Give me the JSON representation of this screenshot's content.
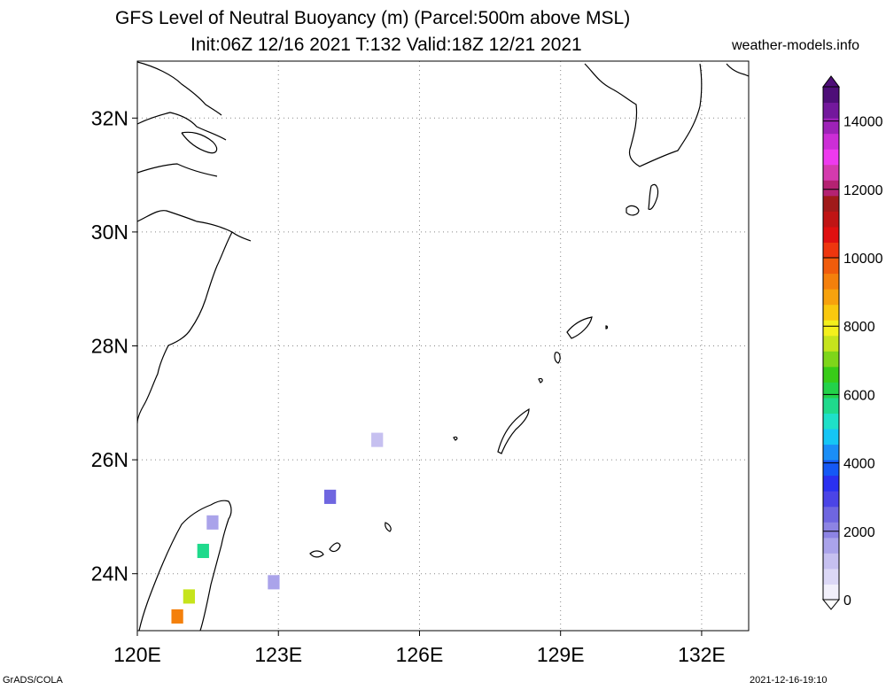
{
  "title": {
    "line1": "GFS Level of Neutral Buoyancy (m) (Parcel:500m above MSL)",
    "line2": "Init:06Z 12/16 2021 T:132 Valid:18Z 12/21 2021"
  },
  "site": "weather-models.info",
  "lat_ticks": [
    {
      "label": "32N",
      "lat": 32
    },
    {
      "label": "30N",
      "lat": 30
    },
    {
      "label": "28N",
      "lat": 28
    },
    {
      "label": "26N",
      "lat": 26
    },
    {
      "label": "24N",
      "lat": 24
    }
  ],
  "lon_ticks": [
    {
      "label": "120E",
      "lon": 120
    },
    {
      "label": "123E",
      "lon": 123
    },
    {
      "label": "126E",
      "lon": 126
    },
    {
      "label": "129E",
      "lon": 129
    },
    {
      "label": "132E",
      "lon": 132
    }
  ],
  "map_extent": {
    "lon": [
      120,
      133
    ],
    "lat": [
      23,
      33
    ]
  },
  "colorbar": {
    "min": 0,
    "max": 15000,
    "labels": [
      "0",
      "2000",
      "4000",
      "6000",
      "8000",
      "10000",
      "12000",
      "14000"
    ],
    "colors": [
      "#f2f0fb",
      "#dcd8f6",
      "#c6c0f0",
      "#aaa3ea",
      "#8d84e4",
      "#6f66e0",
      "#4b44e6",
      "#2a30f0",
      "#1558f5",
      "#1a8ef7",
      "#15c6f5",
      "#1ee0c8",
      "#1fda8c",
      "#23d24a",
      "#38cc18",
      "#7ed61a",
      "#c6e41c",
      "#f4f01c",
      "#f9c80e",
      "#f7a20d",
      "#f4800c",
      "#f05c0c",
      "#ee360e",
      "#e01010",
      "#c01414",
      "#a01a1a",
      "#b42272",
      "#d43aae",
      "#ee3aee",
      "#cc2ed6",
      "#9e22b8",
      "#73189c",
      "#4e0e78"
    ]
  },
  "chart_data": {
    "type": "heatmap",
    "variable": "Level of Neutral Buoyancy (m)",
    "cells": [
      {
        "lon": 125.1,
        "lat": 26.35,
        "value": 1200
      },
      {
        "lon": 124.1,
        "lat": 25.35,
        "value": 2600
      },
      {
        "lon": 121.6,
        "lat": 24.9,
        "value": 1400
      },
      {
        "lon": 121.4,
        "lat": 24.4,
        "value": 5500
      },
      {
        "lon": 122.9,
        "lat": 23.85,
        "value": 1800
      },
      {
        "lon": 121.1,
        "lat": 23.6,
        "value": 7500
      },
      {
        "lon": 120.85,
        "lat": 23.25,
        "value": 9500
      }
    ]
  },
  "footer": {
    "left": "GrADS/COLA",
    "right": "2021-12-16-19:10"
  }
}
